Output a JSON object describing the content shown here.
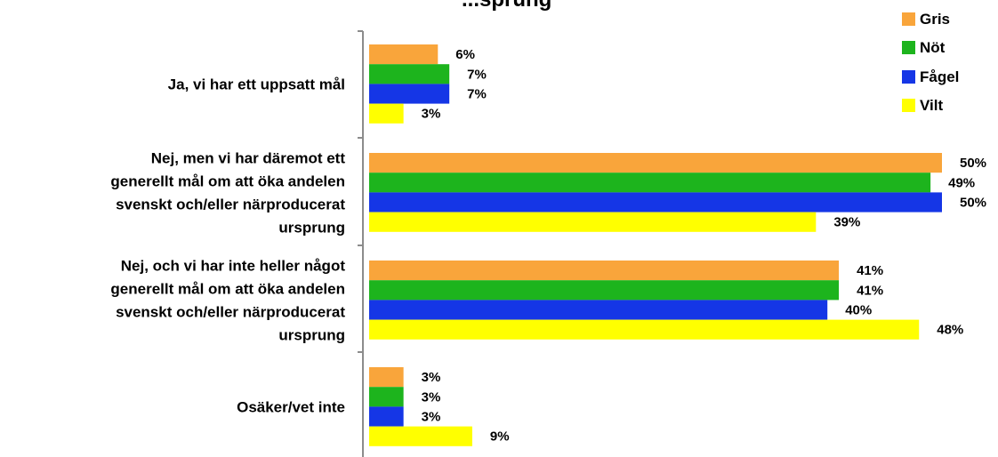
{
  "chart_data": {
    "type": "bar",
    "orientation": "horizontal",
    "title": "...sprung",
    "categories": [
      [
        "Ja, vi har ett uppsatt mål"
      ],
      [
        "Nej, men vi har däremot ett",
        "generellt mål om att öka andelen",
        "svenskt och/eller närproducerat",
        "ursprung"
      ],
      [
        "Nej, och vi har inte heller något",
        "generellt mål om att öka andelen",
        "svenskt och/eller närproducerat",
        "ursprung"
      ],
      [
        "Osäker/vet inte"
      ]
    ],
    "series": [
      {
        "name": "Gris",
        "color": "#F9A53B",
        "values": [
          6,
          50,
          41,
          3
        ],
        "labels": [
          "6%",
          "50%",
          "41%",
          "3%"
        ]
      },
      {
        "name": "Nöt",
        "color": "#1DB41D",
        "values": [
          7,
          49,
          41,
          3
        ],
        "labels": [
          "7%",
          "49%",
          "41%",
          "3%"
        ]
      },
      {
        "name": "Fågel",
        "color": "#1536E6",
        "values": [
          7,
          50,
          40,
          3
        ],
        "labels": [
          "7%",
          "50%",
          "40%",
          "3%"
        ]
      },
      {
        "name": "Vilt",
        "color": "#FFFF00",
        "values": [
          3,
          39,
          48,
          9
        ],
        "labels": [
          "3%",
          "39%",
          "48%",
          "9%"
        ]
      }
    ],
    "xlim": [
      0,
      50
    ],
    "legend_position": "top-right",
    "grid": false
  }
}
